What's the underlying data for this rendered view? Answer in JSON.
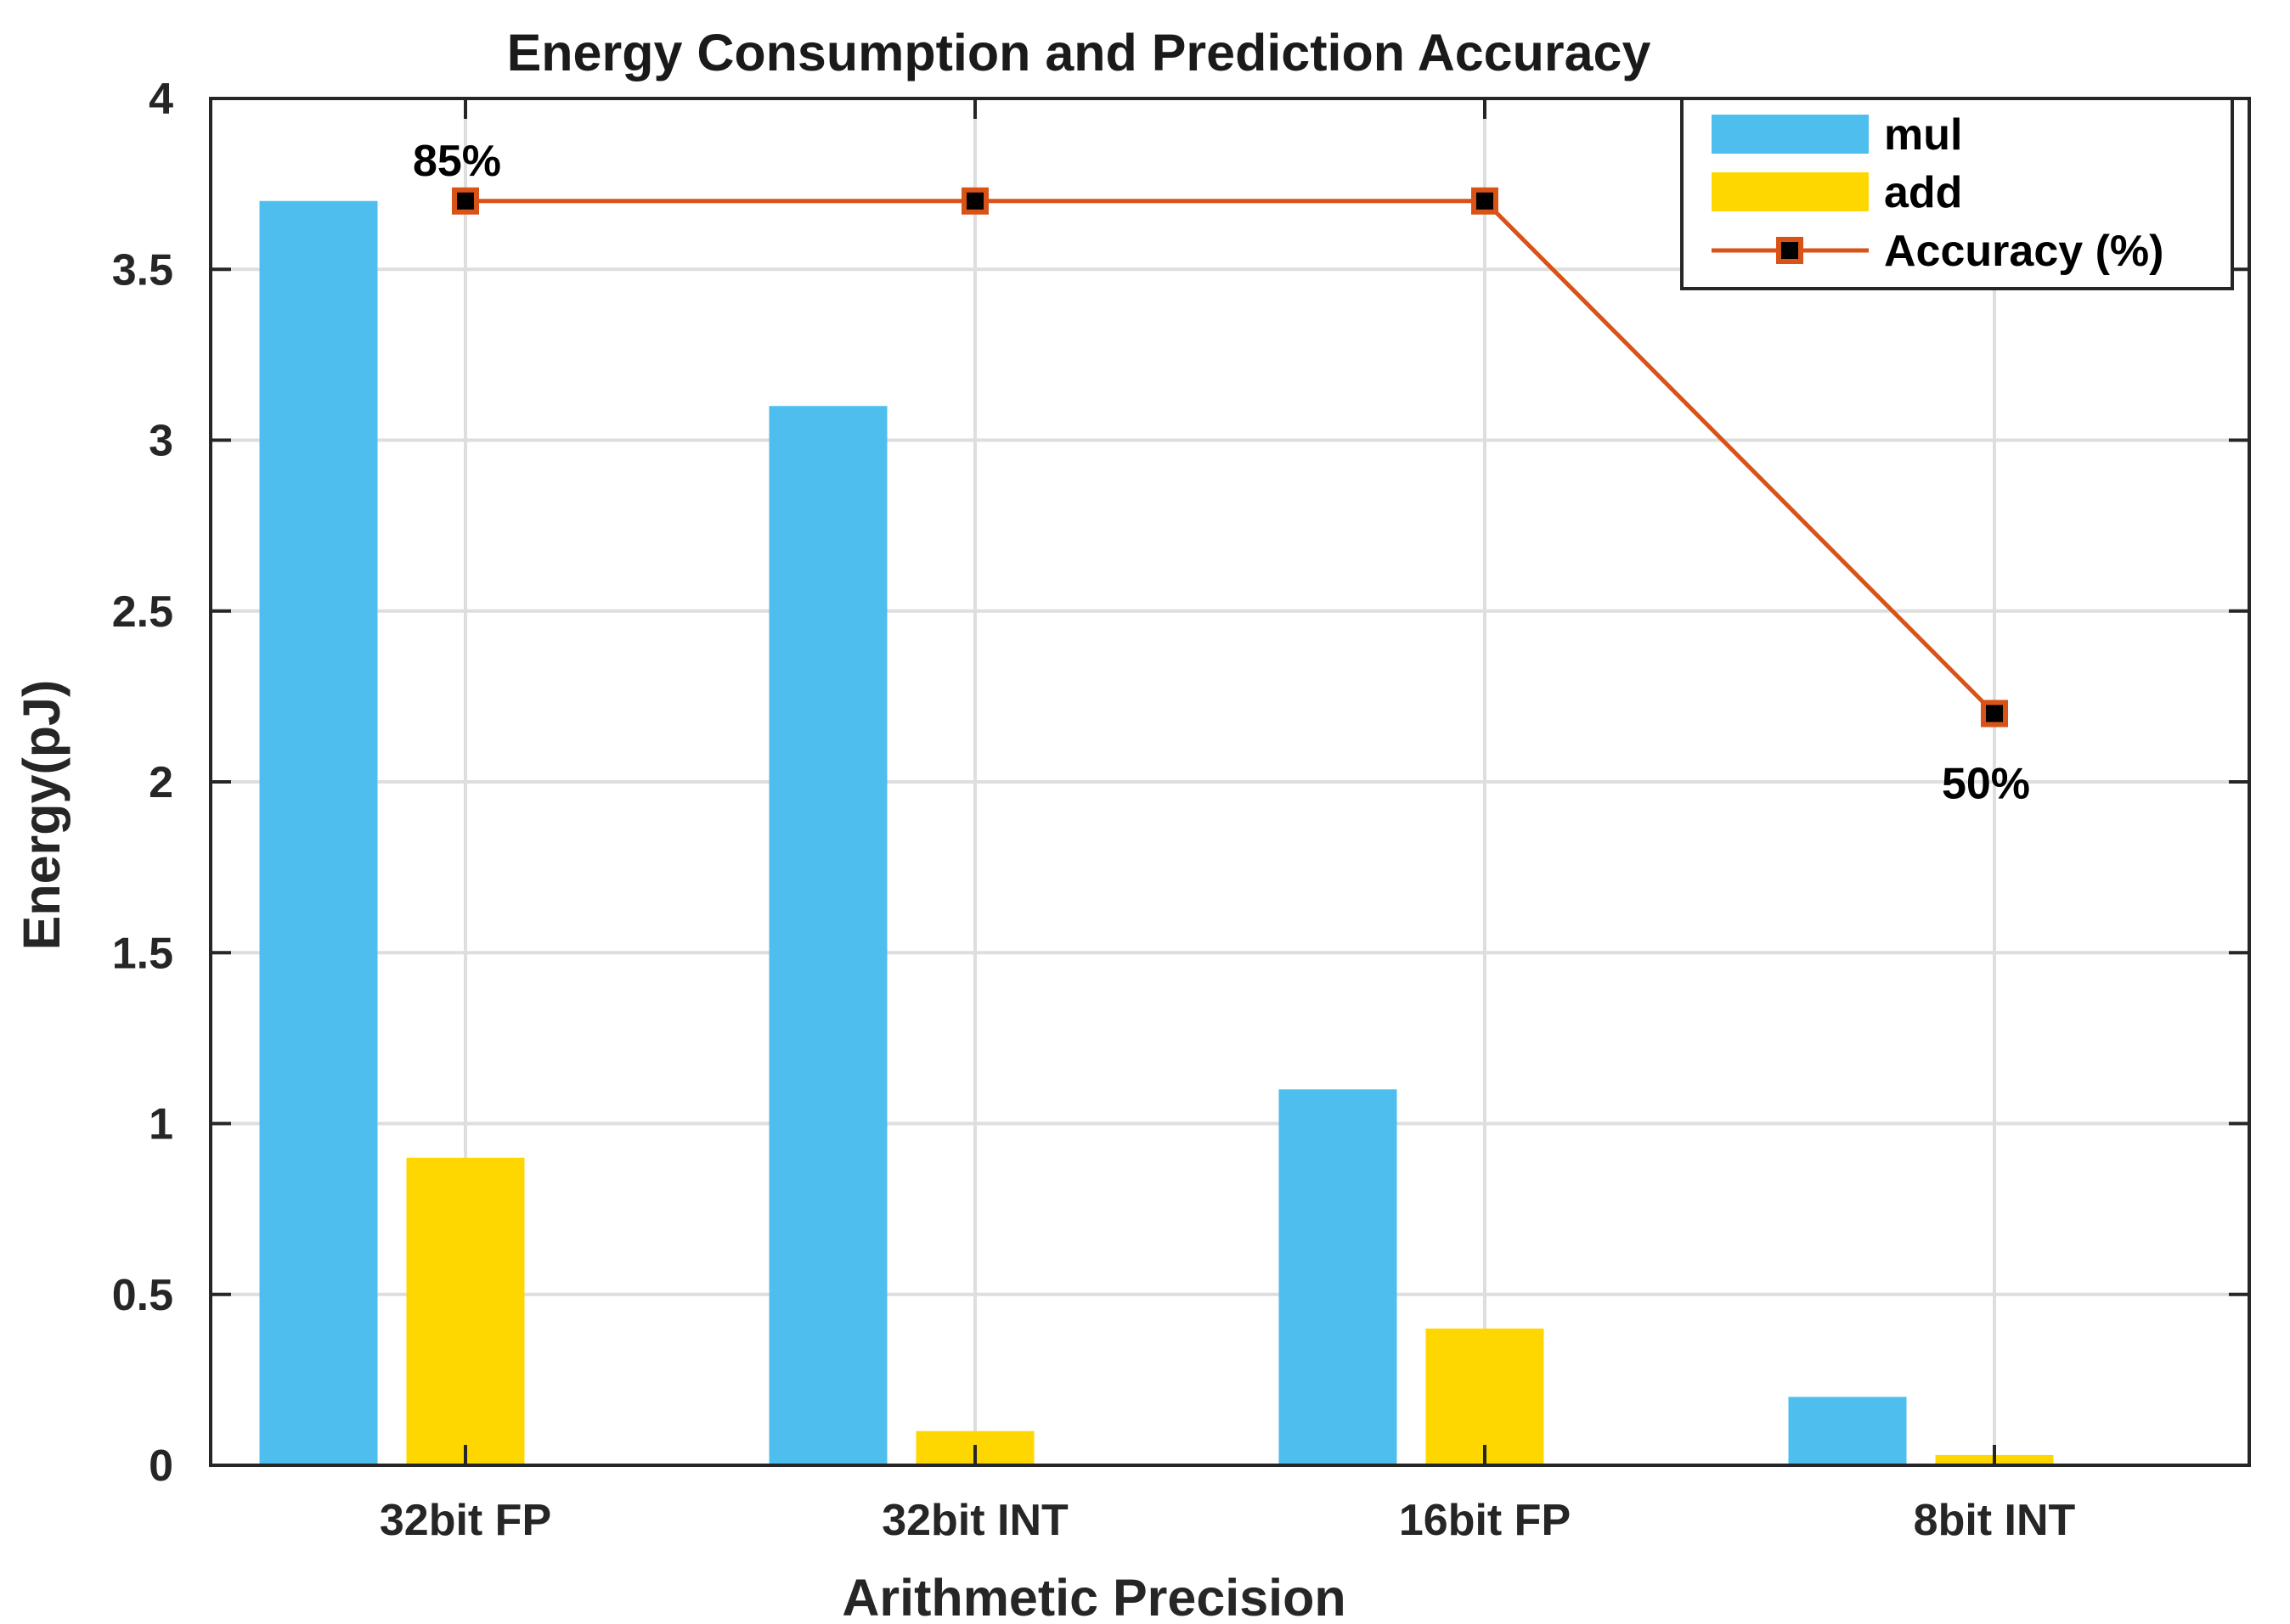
{
  "chart_data": {
    "type": "bar",
    "title": "Energy Consumption and Prediction Accuracy",
    "xlabel": "Arithmetic Precision",
    "ylabel": "Energy(pJ)",
    "categories": [
      "32bit FP",
      "32bit INT",
      "16bit FP",
      "8bit INT"
    ],
    "ylim": [
      0,
      4
    ],
    "yticks": [
      0,
      0.5,
      1,
      1.5,
      2,
      2.5,
      3,
      3.5,
      4
    ],
    "ytick_labels": [
      "0",
      "0.5",
      "1",
      "1.5",
      "2",
      "2.5",
      "3",
      "3.5",
      "4"
    ],
    "grid": true,
    "legend_position": "top-right",
    "series": [
      {
        "name": "mul",
        "kind": "bar",
        "color": "#4DBEEE",
        "values": [
          3.7,
          3.1,
          1.1,
          0.2
        ]
      },
      {
        "name": "add",
        "kind": "bar",
        "color": "#FFD700",
        "values": [
          0.9,
          0.1,
          0.4,
          0.03
        ]
      },
      {
        "name": "Accuracy (%)",
        "kind": "line",
        "color": "#D95319",
        "marker": "square",
        "marker_fill": "#000000",
        "values": [
          3.7,
          3.7,
          3.7,
          2.2
        ]
      }
    ],
    "annotations": [
      {
        "text": "85%",
        "category_index": 0,
        "series": "Accuracy (%)",
        "placement": "above"
      },
      {
        "text": "50%",
        "category_index": 3,
        "series": "Accuracy (%)",
        "placement": "below"
      }
    ]
  }
}
